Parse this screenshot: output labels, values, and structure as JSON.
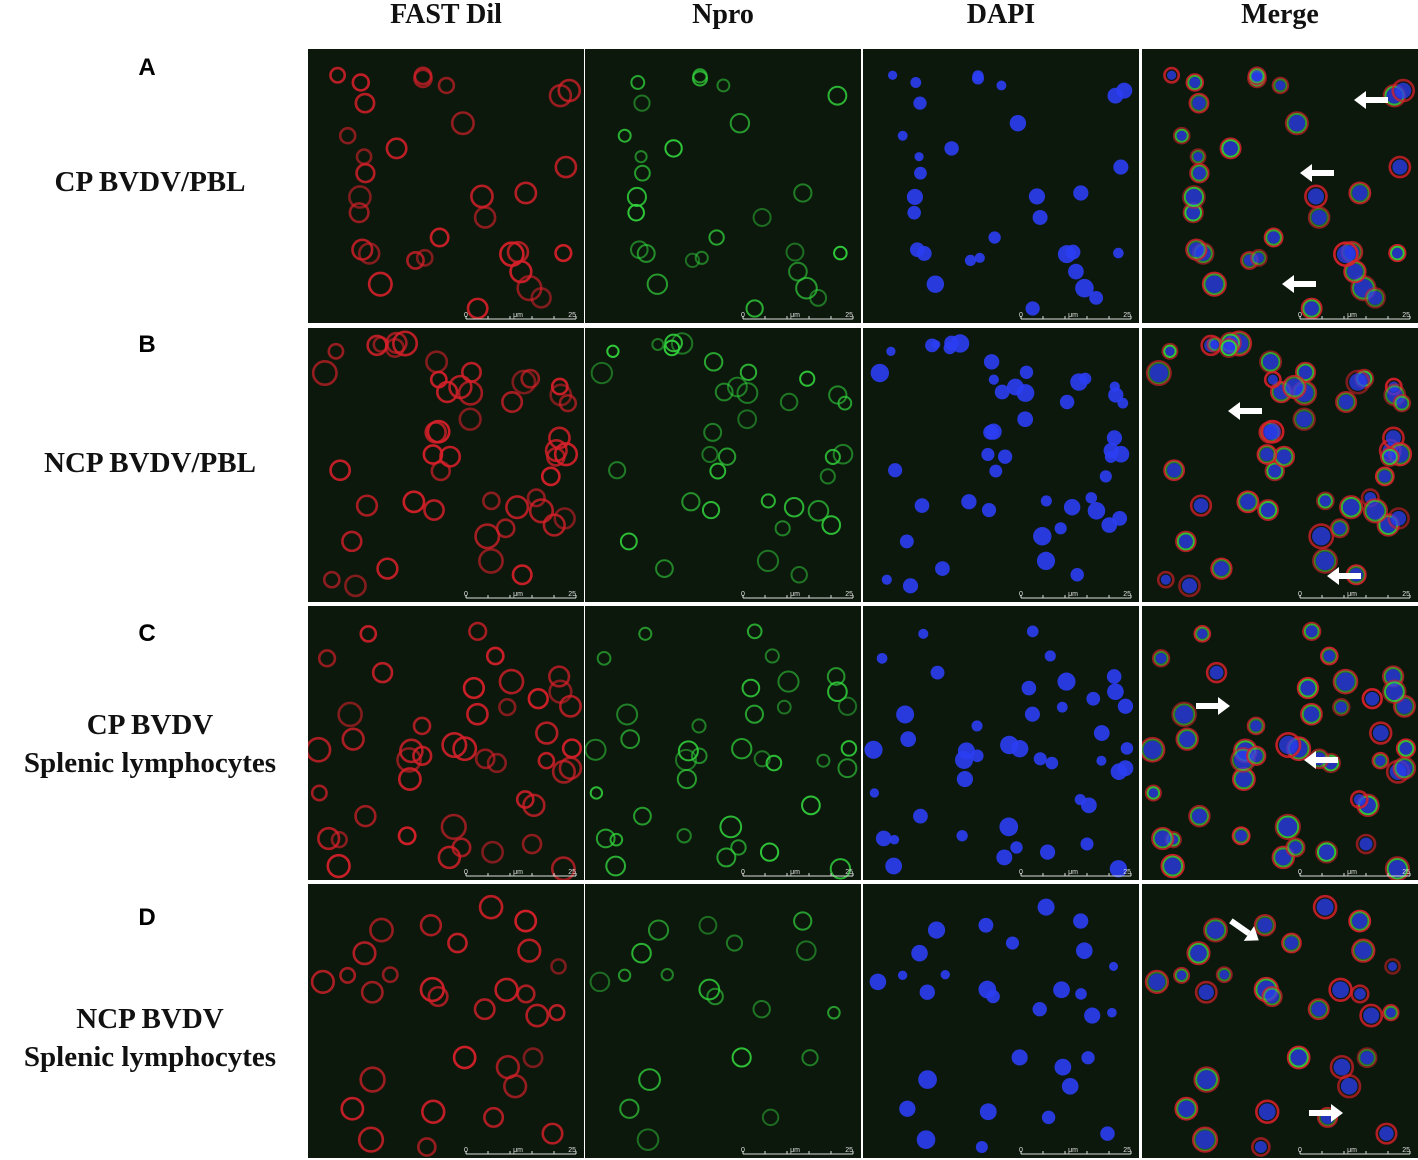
{
  "columns": [
    {
      "label": "FAST Dil",
      "channel": "red"
    },
    {
      "label": "Npro",
      "channel": "green"
    },
    {
      "label": "DAPI",
      "channel": "blue"
    },
    {
      "label": "Merge",
      "channel": "merge"
    }
  ],
  "rows": [
    {
      "letter": "A",
      "label": "CP BVDV/PBL"
    },
    {
      "letter": "B",
      "label": "NCP BVDV/PBL"
    },
    {
      "letter": "C",
      "label": "CP BVDV\nSplenic lymphocytes"
    },
    {
      "letter": "D",
      "label": "NCP BVDV\nSplenic lymphocytes"
    }
  ],
  "scale_bar": {
    "start": "0",
    "unit": "μm",
    "end": "25"
  },
  "colors": {
    "red_channel": "#e0202a",
    "green_channel": "#2ec83a",
    "blue_channel": "#2a3cf0",
    "background": "#0c180c",
    "arrow": "#ffffff"
  }
}
